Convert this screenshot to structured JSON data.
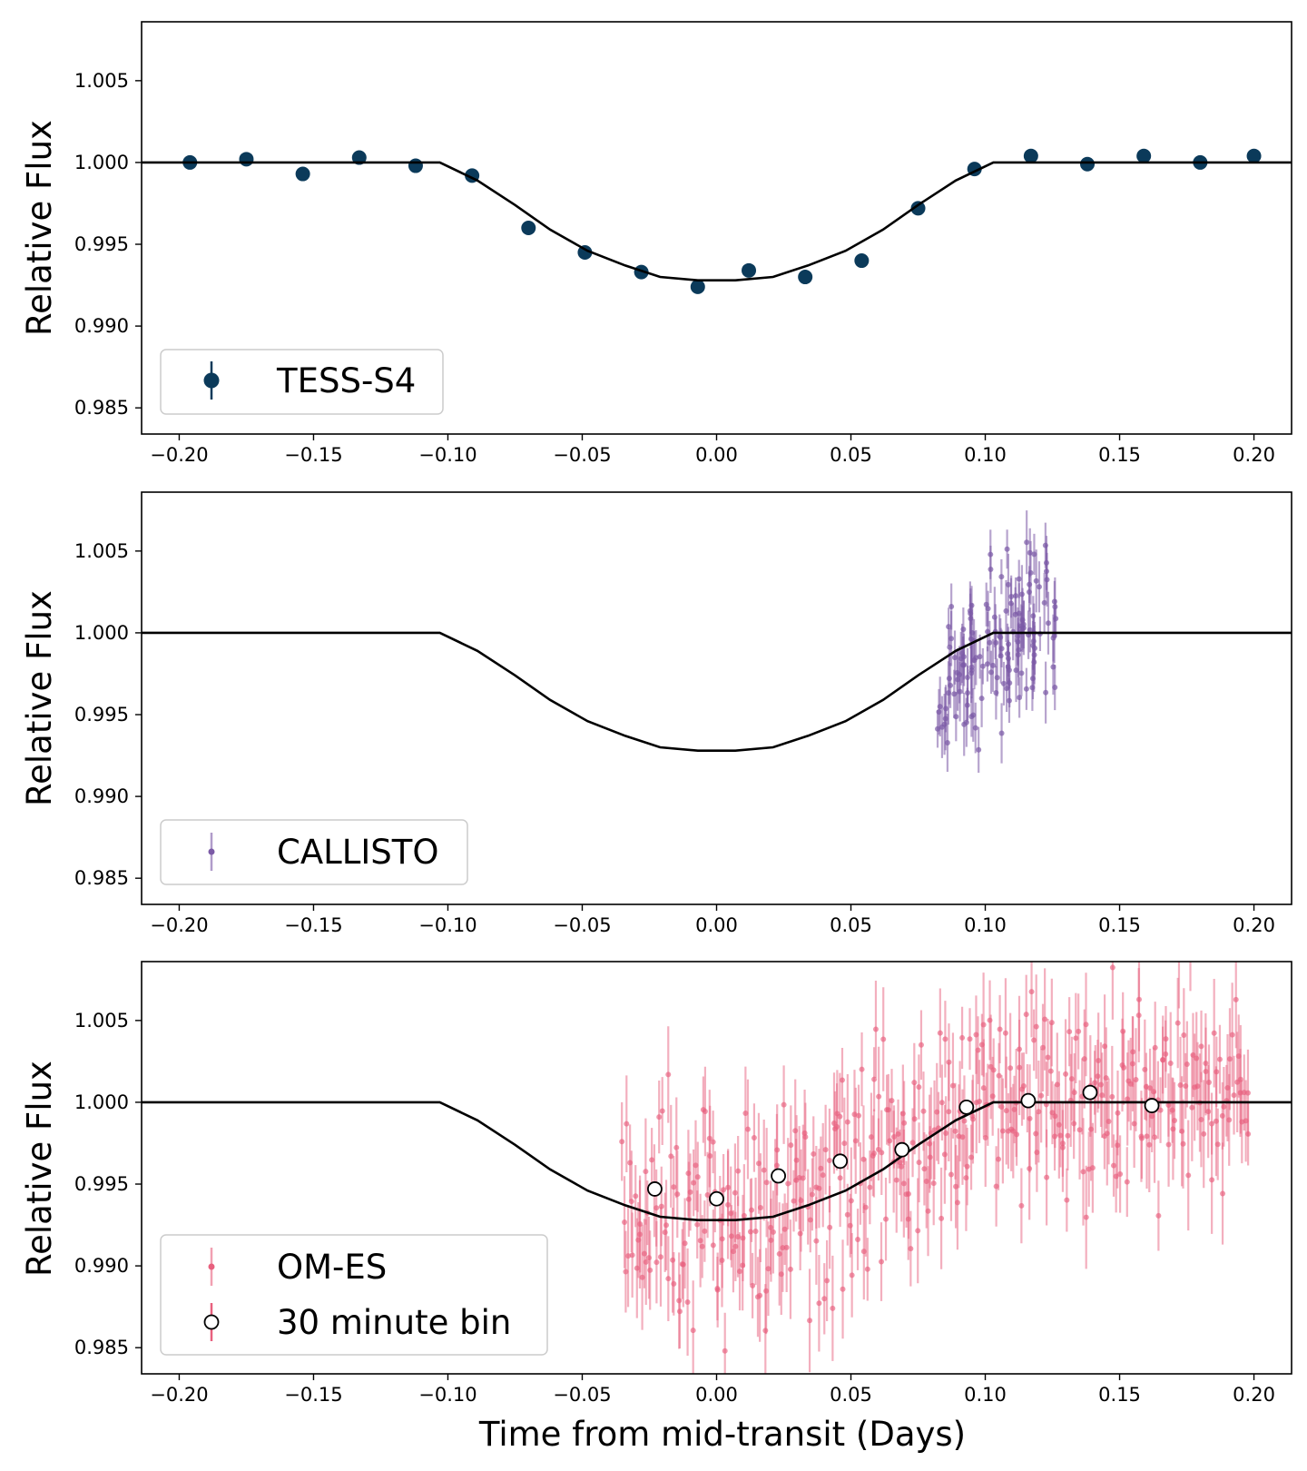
{
  "figure": {
    "xlabel": "Time from mid-transit (Days)",
    "ylabel": "Relative Flux",
    "xticks": [
      "−0.20",
      "−0.15",
      "−0.10",
      "−0.05",
      "0.00",
      "0.05",
      "0.10",
      "0.15",
      "0.20"
    ],
    "yticks": [
      "0.985",
      "0.990",
      "0.995",
      "1.000",
      "1.005"
    ]
  },
  "chart_data": [
    {
      "type": "scatter",
      "xlim": [
        -0.214,
        0.214
      ],
      "ylim": [
        0.9834,
        1.0086
      ],
      "model": {
        "x": [
          -0.214,
          -0.103,
          -0.089,
          -0.075,
          -0.062,
          -0.048,
          -0.034,
          -0.021,
          -0.007,
          0.007,
          0.021,
          0.034,
          0.048,
          0.062,
          0.075,
          0.089,
          0.103,
          0.214
        ],
        "y": [
          1.0,
          1.0,
          0.9989,
          0.9974,
          0.9959,
          0.9946,
          0.9937,
          0.993,
          0.9928,
          0.9928,
          0.993,
          0.9937,
          0.9946,
          0.9959,
          0.9974,
          0.9989,
          1.0,
          1.0
        ]
      },
      "series": [
        {
          "name": "TESS-S4",
          "color": "#0b3a5a",
          "x": [
            -0.196,
            -0.175,
            -0.154,
            -0.133,
            -0.112,
            -0.091,
            -0.07,
            -0.049,
            -0.028,
            -0.007,
            0.012,
            0.033,
            0.054,
            0.075,
            0.096,
            0.117,
            0.138,
            0.159,
            0.18,
            0.2
          ],
          "y": [
            1.0,
            1.0002,
            0.9993,
            1.0003,
            0.9998,
            0.9992,
            0.996,
            0.9945,
            0.9933,
            0.9924,
            0.9934,
            0.993,
            0.994,
            0.9972,
            0.9996,
            1.0004,
            0.9999,
            1.0004,
            1.0,
            1.0004
          ]
        }
      ]
    },
    {
      "type": "scatter",
      "xlim": [
        -0.214,
        0.214
      ],
      "ylim": [
        0.9834,
        1.0086
      ],
      "model_ref": 0,
      "series": [
        {
          "name": "CALLISTO",
          "color": "#7b5aa6",
          "x_range": [
            0.082,
            0.127
          ],
          "n_points": 140,
          "trend": "transit egress, flux rising from ~0.996 to ~1.002",
          "yerr": 0.0015
        }
      ]
    },
    {
      "type": "scatter",
      "xlim": [
        -0.214,
        0.214
      ],
      "ylim": [
        0.9834,
        1.0086
      ],
      "model_ref": 0,
      "series": [
        {
          "name": "OM-ES",
          "color": "#e8607e",
          "x_range": [
            -0.035,
            0.198
          ],
          "n_points": 420,
          "yerr": 0.0025
        },
        {
          "name": "30 minute bin",
          "color": "#ffffff",
          "x": [
            -0.023,
            0.0,
            0.023,
            0.046,
            0.069,
            0.093,
            0.116,
            0.139,
            0.162
          ],
          "y": [
            0.9947,
            0.9941,
            0.9955,
            0.9964,
            0.9971,
            0.9997,
            1.0001,
            1.0006,
            0.9998
          ]
        }
      ]
    }
  ]
}
